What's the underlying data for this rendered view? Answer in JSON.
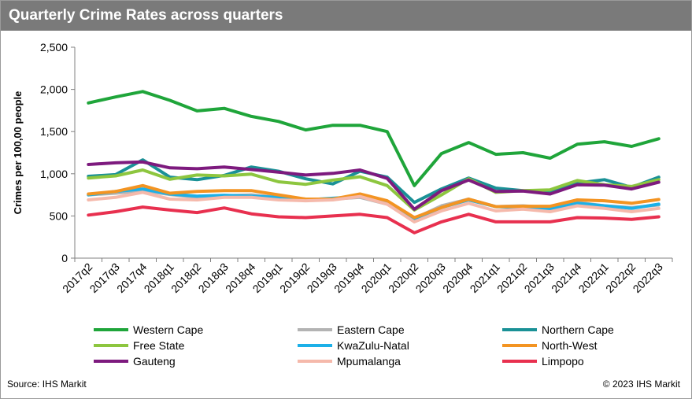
{
  "header": {
    "title": "Quarterly Crime Rates across quarters"
  },
  "footer": {
    "source": "Source: IHS Markit",
    "copyright": "© 2023 IHS Markit"
  },
  "chart_data": {
    "type": "line",
    "title": "Quarterly Crime Rates across quarters",
    "xlabel": "",
    "ylabel": "Crimes  per 100,00 people",
    "ylim": [
      0,
      2500
    ],
    "yticks": [
      0,
      500,
      1000,
      1500,
      2000,
      2500
    ],
    "ytick_labels": [
      "0",
      "500",
      "1,000",
      "1,500",
      "2,000",
      "2,500"
    ],
    "grid": false,
    "legend_position": "bottom",
    "categories": [
      "2017q2",
      "2017q3",
      "2017q4",
      "2018q1",
      "2018q2",
      "2018q3",
      "2018q4",
      "2019q1",
      "2019q2",
      "2019q3",
      "2019q4",
      "2020q1",
      "2020q2",
      "2020q3",
      "2020q4",
      "2021q1",
      "2021q2",
      "2021q3",
      "2021q4",
      "2022q1",
      "2022q2",
      "2022q3"
    ],
    "series": [
      {
        "name": "Western Cape",
        "color": "#1fa53a",
        "values": [
          1840,
          1910,
          1975,
          1870,
          1745,
          1775,
          1680,
          1620,
          1520,
          1575,
          1575,
          1500,
          860,
          1240,
          1370,
          1230,
          1250,
          1185,
          1350,
          1380,
          1325,
          1415
        ]
      },
      {
        "name": "Eastern Cape",
        "color": "#b3b3b3",
        "values": [
          750,
          770,
          800,
          755,
          720,
          740,
          750,
          720,
          700,
          700,
          720,
          640,
          470,
          620,
          700,
          610,
          620,
          600,
          660,
          620,
          600,
          630
        ]
      },
      {
        "name": "Northern Cape",
        "color": "#1a9196",
        "values": [
          970,
          990,
          1165,
          960,
          930,
          980,
          1080,
          1030,
          940,
          880,
          1030,
          960,
          660,
          820,
          950,
          830,
          800,
          790,
          890,
          930,
          840,
          960
        ]
      },
      {
        "name": "Free State",
        "color": "#8dc63f",
        "values": [
          950,
          975,
          1045,
          935,
          985,
          975,
          995,
          905,
          875,
          925,
          965,
          860,
          570,
          750,
          940,
          780,
          800,
          810,
          920,
          870,
          850,
          930
        ]
      },
      {
        "name": "KwaZulu-Natal",
        "color": "#1cb0e8",
        "values": [
          750,
          790,
          820,
          760,
          735,
          745,
          735,
          720,
          690,
          710,
          730,
          650,
          460,
          600,
          690,
          610,
          600,
          580,
          650,
          620,
          590,
          640
        ]
      },
      {
        "name": "North-West",
        "color": "#f39422",
        "values": [
          760,
          790,
          860,
          770,
          790,
          800,
          800,
          750,
          700,
          700,
          760,
          680,
          480,
          600,
          700,
          610,
          615,
          615,
          690,
          680,
          650,
          695
        ]
      },
      {
        "name": "Gauteng",
        "color": "#7d1a7e",
        "values": [
          1110,
          1130,
          1140,
          1070,
          1060,
          1080,
          1050,
          1020,
          985,
          1005,
          1045,
          945,
          580,
          800,
          925,
          790,
          795,
          760,
          870,
          865,
          820,
          900
        ]
      },
      {
        "name": "Mpumalanga",
        "color": "#f5b9ab",
        "values": [
          690,
          720,
          780,
          700,
          690,
          720,
          720,
          690,
          680,
          690,
          730,
          640,
          430,
          560,
          650,
          560,
          580,
          550,
          620,
          590,
          550,
          590
        ]
      },
      {
        "name": "Limpopo",
        "color": "#e8304f",
        "values": [
          510,
          550,
          605,
          570,
          540,
          595,
          525,
          490,
          480,
          500,
          520,
          480,
          300,
          430,
          520,
          430,
          430,
          430,
          480,
          475,
          460,
          490
        ]
      }
    ]
  }
}
